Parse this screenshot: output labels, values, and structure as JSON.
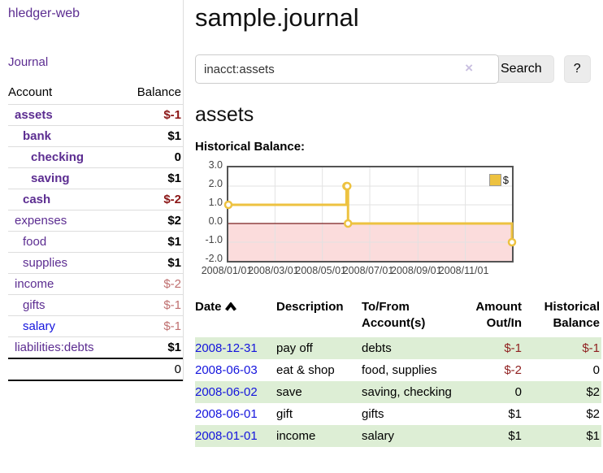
{
  "app": {
    "brand": "hledger-web"
  },
  "colors": {
    "link_purple": "#5c2d91",
    "link_blue": "#1414dd",
    "negative_strong": "#8b1717",
    "negative_soft": "#bf6f6f",
    "row_green": "#ddeed5",
    "series_gold": "#edc240"
  },
  "sidebar": {
    "nav": {
      "journal_label": "Journal"
    },
    "table": {
      "headers": [
        "Account",
        "Balance"
      ],
      "rows": [
        {
          "account": "assets",
          "balance": "$-1",
          "depth": 1,
          "bold": true,
          "negative": "strong"
        },
        {
          "account": "bank",
          "balance": "$1",
          "depth": 2,
          "bold": true,
          "negative": null
        },
        {
          "account": "checking",
          "balance": "0",
          "depth": 3,
          "bold": true,
          "negative": null
        },
        {
          "account": "saving",
          "balance": "$1",
          "depth": 3,
          "bold": true,
          "negative": null
        },
        {
          "account": "cash",
          "balance": "$-2",
          "depth": 2,
          "bold": true,
          "negative": "strong"
        },
        {
          "account": "expenses",
          "balance": "$2",
          "depth": 1,
          "bold": false,
          "negative": null
        },
        {
          "account": "food",
          "balance": "$1",
          "depth": 2,
          "bold": false,
          "negative": null
        },
        {
          "account": "supplies",
          "balance": "$1",
          "depth": 2,
          "bold": false,
          "negative": null
        },
        {
          "account": "income",
          "balance": "$-2",
          "depth": 1,
          "bold": false,
          "negative": "soft"
        },
        {
          "account": "gifts",
          "balance": "$-1",
          "depth": 2,
          "bold": false,
          "negative": "soft"
        },
        {
          "account": "salary",
          "balance": "$-1",
          "depth": 2,
          "bold": false,
          "negative": "soft",
          "link_color": "#1414dd"
        },
        {
          "account": "liabilities:debts",
          "balance": "$1",
          "depth": 1,
          "bold": false,
          "negative": null
        }
      ],
      "total": "0"
    }
  },
  "header": {
    "title": "sample.journal"
  },
  "search": {
    "value": "inacct:assets",
    "clear_icon": "×",
    "button_label": "Search",
    "help_label": "?"
  },
  "account_page": {
    "heading": "assets",
    "chart_label": "Historical Balance:"
  },
  "chart_data": {
    "type": "line",
    "title": "Historical Balance:",
    "step": true,
    "xlim": [
      "2008-01-01",
      "2008-12-31"
    ],
    "ylim": [
      -2,
      3
    ],
    "series": [
      {
        "name": "$",
        "color": "#edc240",
        "points": [
          [
            "2008-01-01",
            1
          ],
          [
            "2008-06-01",
            2
          ],
          [
            "2008-06-02",
            2
          ],
          [
            "2008-06-03",
            0
          ],
          [
            "2008-12-31",
            -1
          ]
        ]
      }
    ],
    "x_ticks": [
      {
        "label": "2008/01/01",
        "date": "2008-01-01"
      },
      {
        "label": "2008/03/01",
        "date": "2008-03-01"
      },
      {
        "label": "2008/05/01",
        "date": "2008-05-01"
      },
      {
        "label": "2008/07/01",
        "date": "2008-07-01"
      },
      {
        "label": "2008/09/01",
        "date": "2008-09-01"
      },
      {
        "label": "2008/11/01",
        "date": "2008-11-01"
      }
    ],
    "y_ticks": [
      {
        "label": "3.0",
        "value": 3
      },
      {
        "label": "2.0",
        "value": 2
      },
      {
        "label": "1.0",
        "value": 1
      },
      {
        "label": "0.0",
        "value": 0
      },
      {
        "label": "-1.0",
        "value": -1
      },
      {
        "label": "-2.0",
        "value": -2
      }
    ],
    "grid": true,
    "negative_region_color": "#fbdcdc",
    "zero_line_color": "#7a1f1f",
    "grid_color": "#e2e2e2",
    "legend": {
      "label": "$",
      "position": "top-right"
    }
  },
  "register": {
    "headers": {
      "date": "Date",
      "sort_icon": "chevron-up",
      "description": "Description",
      "accounts": "To/From Account(s)",
      "amount": "Amount Out/In",
      "balance": "Historical Balance"
    },
    "rows": [
      {
        "date": "2008-12-31",
        "description": "pay off",
        "accounts": "debts",
        "amount": "$-1",
        "balance": "$-1",
        "amount_negative": true,
        "balance_negative": true
      },
      {
        "date": "2008-06-03",
        "description": "eat & shop",
        "accounts": "food, supplies",
        "amount": "$-2",
        "balance": "0",
        "amount_negative": true,
        "balance_negative": false
      },
      {
        "date": "2008-06-02",
        "description": "save",
        "accounts": "saving, checking",
        "amount": "0",
        "balance": "$2",
        "amount_negative": false,
        "balance_negative": false
      },
      {
        "date": "2008-06-01",
        "description": "gift",
        "accounts": "gifts",
        "amount": "$1",
        "balance": "$2",
        "amount_negative": false,
        "balance_negative": false
      },
      {
        "date": "2008-01-01",
        "description": "income",
        "accounts": "salary",
        "amount": "$1",
        "balance": "$1",
        "amount_negative": false,
        "balance_negative": false
      }
    ]
  }
}
